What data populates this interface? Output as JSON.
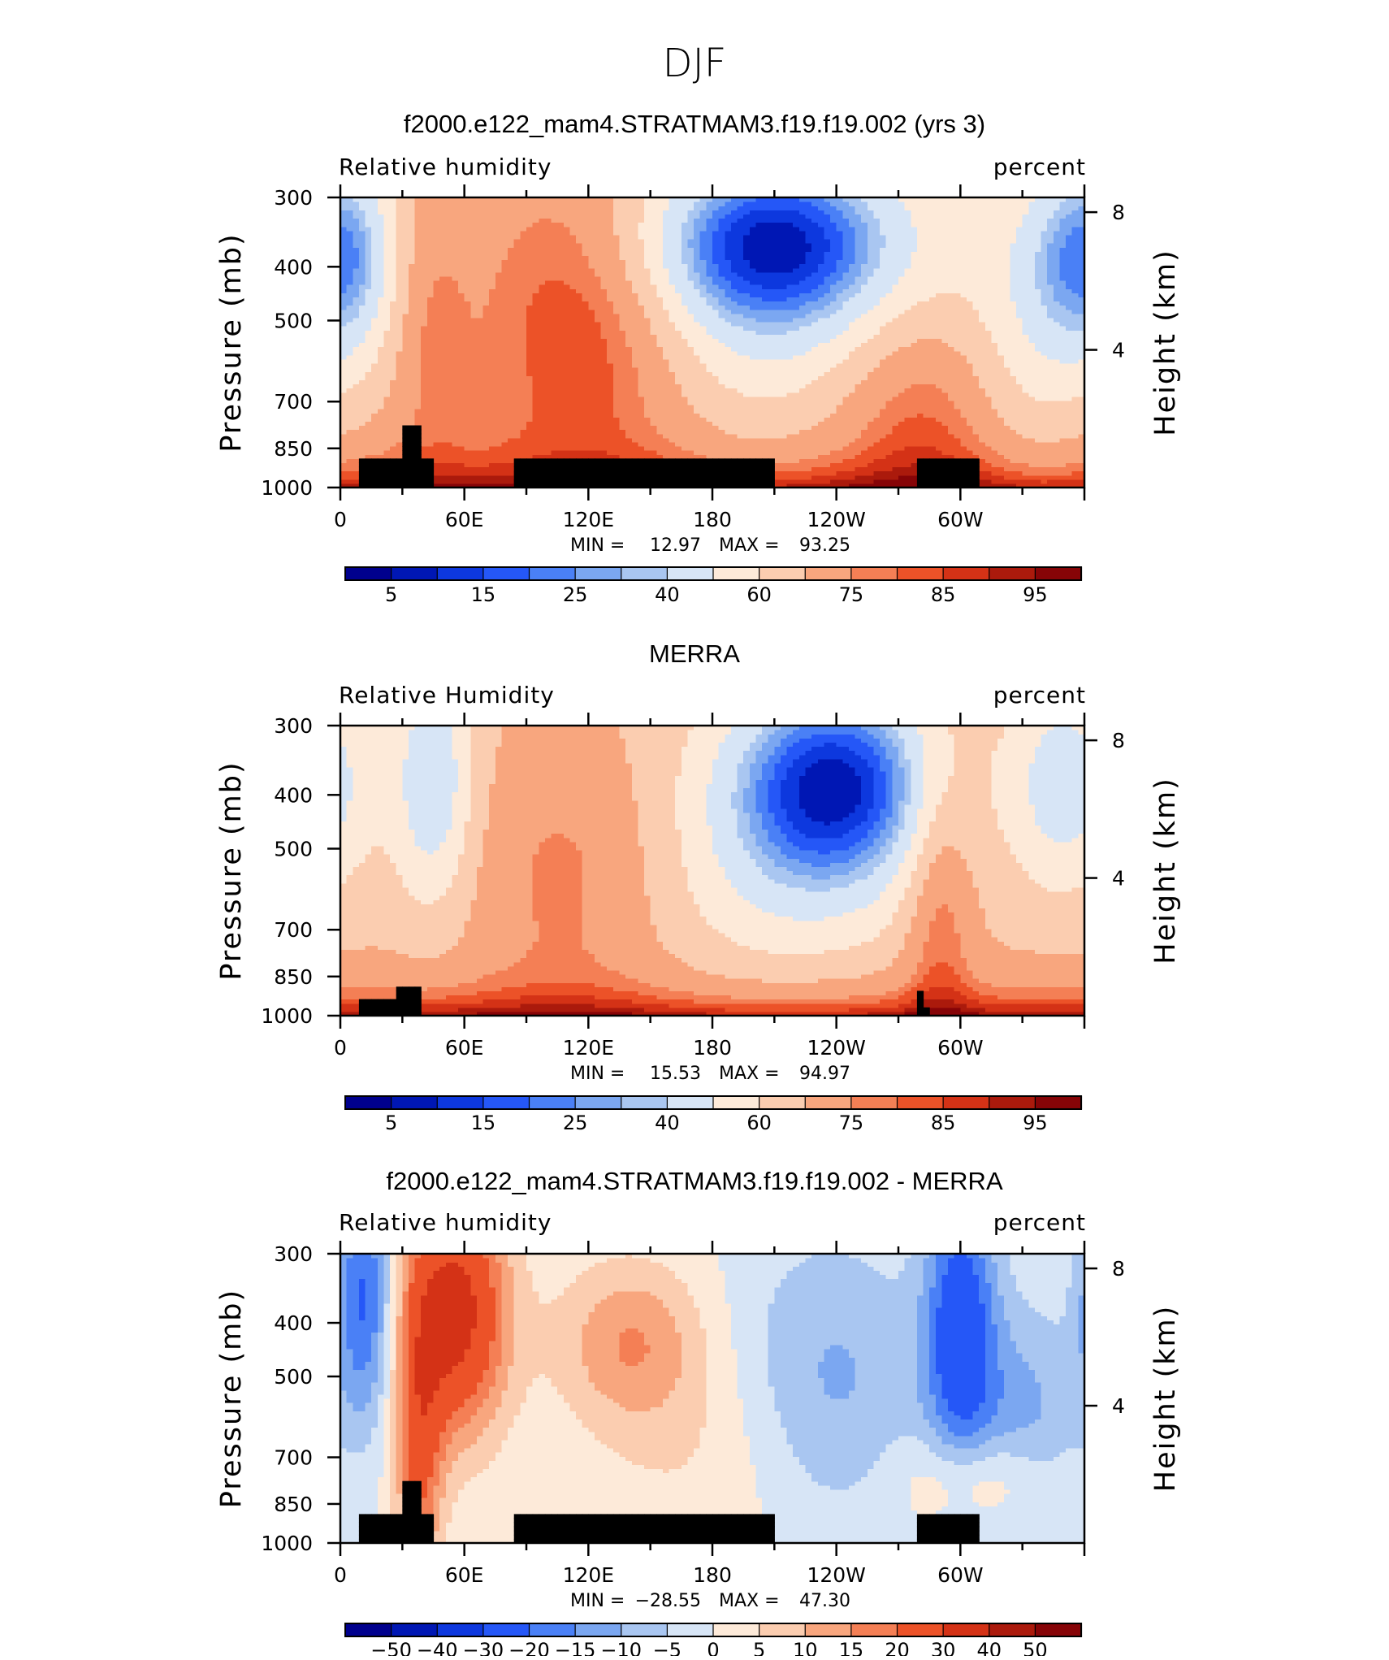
{
  "page": {
    "title": "DJF"
  },
  "colors": {
    "model_scale": [
      "#00008d",
      "#0017b4",
      "#0d38de",
      "#2557f7",
      "#4a80f6",
      "#7ba7f1",
      "#a9c6f1",
      "#d7e5f6",
      "#fdead9",
      "#fbcdb0",
      "#f8a67e",
      "#f47f55",
      "#ec5228",
      "#d43216",
      "#ab1a0c",
      "#860407"
    ],
    "diff_scale": [
      "#00008d",
      "#0017b4",
      "#0d38de",
      "#2557f7",
      "#4a80f6",
      "#7ba7f1",
      "#a9c6f1",
      "#d7e5f6",
      "#fdead9",
      "#fbcdb0",
      "#f8a67e",
      "#f47f55",
      "#ec5228",
      "#d43216",
      "#ab1a0c",
      "#860407"
    ],
    "land_mask": "#000000"
  },
  "chart_data": [
    {
      "type": "heatmap",
      "title": "f2000.e122_mam4.STRATMAM3.f19.f19.002 (yrs 3)",
      "variable_label": "Relative humidity",
      "units_label": "percent",
      "ylabel": "Pressure (mb)",
      "ylabel_right": "Height (km)",
      "x_ticks": [
        "0",
        "60E",
        "120E",
        "180",
        "120W",
        "60W"
      ],
      "y_ticks": [
        "300",
        "400",
        "500",
        "700",
        "850",
        "1000"
      ],
      "y_right_ticks": [
        "8",
        "4"
      ],
      "stats": {
        "min_label": "MIN =",
        "min": "12.97",
        "max_label": "MAX =",
        "max": "93.25"
      },
      "colorbar_labels": [
        "5",
        "15",
        "25",
        "40",
        "60",
        "75",
        "85",
        "95"
      ],
      "xlim": [
        0,
        360
      ],
      "ylim": [
        1000,
        300
      ],
      "field": "model",
      "scale": "log-pressure"
    },
    {
      "type": "heatmap",
      "title": "MERRA",
      "variable_label": "Relative Humidity",
      "units_label": "percent",
      "ylabel": "Pressure (mb)",
      "ylabel_right": "Height (km)",
      "x_ticks": [
        "0",
        "60E",
        "120E",
        "180",
        "120W",
        "60W"
      ],
      "y_ticks": [
        "300",
        "400",
        "500",
        "700",
        "850",
        "1000"
      ],
      "y_right_ticks": [
        "8",
        "4"
      ],
      "stats": {
        "min_label": "MIN =",
        "min": "15.53",
        "max_label": "MAX =",
        "max": "94.97"
      },
      "colorbar_labels": [
        "5",
        "15",
        "25",
        "40",
        "60",
        "75",
        "85",
        "95"
      ],
      "xlim": [
        0,
        360
      ],
      "ylim": [
        1000,
        300
      ],
      "field": "obs",
      "scale": "log-pressure"
    },
    {
      "type": "heatmap",
      "title": "f2000.e122_mam4.STRATMAM3.f19.f19.002 - MERRA",
      "variable_label": "Relative humidity",
      "units_label": "percent",
      "ylabel": "Pressure (mb)",
      "ylabel_right": "Height (km)",
      "x_ticks": [
        "0",
        "60E",
        "120E",
        "180",
        "120W",
        "60W"
      ],
      "y_ticks": [
        "300",
        "400",
        "500",
        "700",
        "850",
        "1000"
      ],
      "y_right_ticks": [
        "8",
        "4"
      ],
      "stats": {
        "min_label": "MIN =",
        "min": "−28.55",
        "max_label": "MAX =",
        "max": "47.30"
      },
      "colorbar_labels": [
        "−50",
        "−40",
        "−30",
        "−20",
        "−15",
        "−10",
        "−5",
        "0",
        "5",
        "10",
        "15",
        "20",
        "30",
        "40",
        "50"
      ],
      "xlim": [
        0,
        360
      ],
      "ylim": [
        1000,
        300
      ],
      "field": "diff",
      "scale": "log-pressure"
    }
  ]
}
